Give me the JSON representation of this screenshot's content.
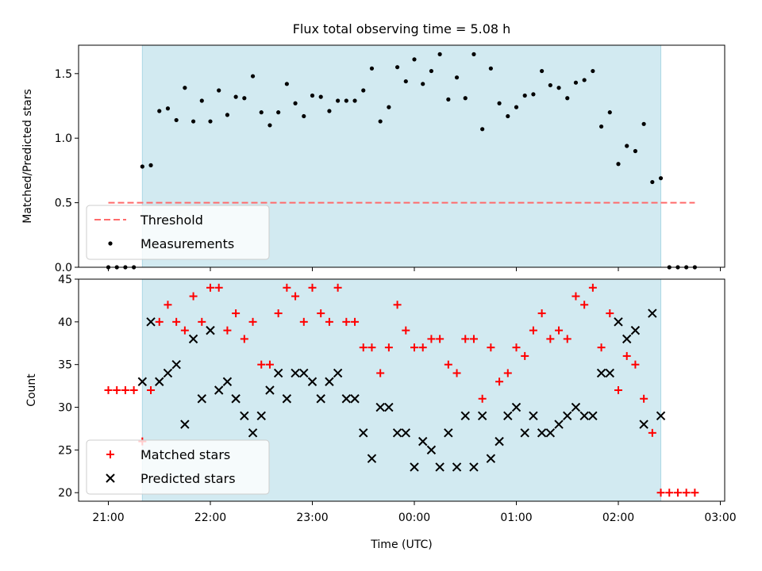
{
  "chart_data": [
    {
      "type": "scatter",
      "title": "Flux total observing time = 5.08 h",
      "ylabel": "Matched/Predicted stars",
      "xlabel": "",
      "ylim": [
        0,
        1.72
      ],
      "yticks": [
        "0.0",
        "0.5",
        "1.0",
        "1.5"
      ],
      "threshold": {
        "name": "Threshold",
        "value": 0.5,
        "color": "#ff6b6b",
        "from": "21:00",
        "to": "02:45"
      },
      "observing_window": {
        "start": "21:20",
        "end": "02:25",
        "color": "#add8e6"
      },
      "legend": {
        "placement": "lower-left",
        "entries": [
          "Threshold",
          "Measurements"
        ]
      },
      "series": [
        {
          "name": "Measurements",
          "color": "#000000",
          "x": [
            "21:00",
            "21:05",
            "21:10",
            "21:15",
            "21:20",
            "21:25",
            "21:30",
            "21:35",
            "21:40",
            "21:45",
            "21:50",
            "21:55",
            "22:00",
            "22:05",
            "22:10",
            "22:15",
            "22:20",
            "22:25",
            "22:30",
            "22:35",
            "22:40",
            "22:45",
            "22:50",
            "22:55",
            "23:00",
            "23:05",
            "23:10",
            "23:15",
            "23:20",
            "23:25",
            "23:30",
            "23:35",
            "23:40",
            "23:45",
            "23:50",
            "23:55",
            "00:00",
            "00:05",
            "00:10",
            "00:15",
            "00:20",
            "00:25",
            "00:30",
            "00:35",
            "00:40",
            "00:45",
            "00:50",
            "00:55",
            "01:00",
            "01:05",
            "01:10",
            "01:15",
            "01:20",
            "01:25",
            "01:30",
            "01:35",
            "01:40",
            "01:45",
            "01:50",
            "01:55",
            "02:00",
            "02:05",
            "02:10",
            "02:15",
            "02:20",
            "02:25",
            "02:30",
            "02:35",
            "02:40",
            "02:45"
          ],
          "values": [
            0.0,
            0.0,
            0.0,
            0.0,
            0.78,
            0.79,
            1.21,
            1.23,
            1.14,
            1.39,
            1.13,
            1.29,
            1.13,
            1.37,
            1.18,
            1.32,
            1.31,
            1.48,
            1.2,
            1.1,
            1.2,
            1.42,
            1.27,
            1.17,
            1.33,
            1.32,
            1.21,
            1.29,
            1.29,
            1.29,
            1.37,
            1.54,
            1.13,
            1.24,
            1.55,
            1.44,
            1.61,
            1.42,
            1.52,
            1.65,
            1.3,
            1.47,
            1.31,
            1.65,
            1.07,
            1.54,
            1.27,
            1.17,
            1.24,
            1.33,
            1.34,
            1.52,
            1.41,
            1.39,
            1.31,
            1.43,
            1.45,
            1.52,
            1.09,
            1.2,
            0.8,
            0.94,
            0.9,
            1.11,
            0.66,
            0.69,
            0.0,
            0.0,
            0.0,
            0.0
          ]
        }
      ]
    },
    {
      "type": "scatter",
      "title": "",
      "ylabel": "Count",
      "xlabel": "Time (UTC)",
      "ylim": [
        19,
        45
      ],
      "yticks": [
        "20",
        "25",
        "30",
        "35",
        "40",
        "45"
      ],
      "xticks": [
        "21:00",
        "22:00",
        "23:00",
        "00:00",
        "01:00",
        "02:00",
        "03:00"
      ],
      "observing_window": {
        "start": "21:20",
        "end": "02:25",
        "color": "#add8e6"
      },
      "legend": {
        "placement": "lower-left",
        "entries": [
          "Matched stars",
          "Predicted stars"
        ]
      },
      "series": [
        {
          "name": "Matched stars",
          "color": "#ff0000",
          "marker": "+",
          "x": [
            "21:00",
            "21:05",
            "21:10",
            "21:15",
            "21:20",
            "21:25",
            "21:30",
            "21:35",
            "21:40",
            "21:45",
            "21:50",
            "21:55",
            "22:00",
            "22:05",
            "22:10",
            "22:15",
            "22:20",
            "22:25",
            "22:30",
            "22:35",
            "22:40",
            "22:45",
            "22:50",
            "22:55",
            "23:00",
            "23:05",
            "23:10",
            "23:15",
            "23:20",
            "23:25",
            "23:30",
            "23:35",
            "23:40",
            "23:45",
            "23:50",
            "23:55",
            "00:00",
            "00:05",
            "00:10",
            "00:15",
            "00:20",
            "00:25",
            "00:30",
            "00:35",
            "00:40",
            "00:45",
            "00:50",
            "00:55",
            "01:00",
            "01:05",
            "01:10",
            "01:15",
            "01:20",
            "01:25",
            "01:30",
            "01:35",
            "01:40",
            "01:45",
            "01:50",
            "01:55",
            "02:00",
            "02:05",
            "02:10",
            "02:15",
            "02:20",
            "02:25",
            "02:30",
            "02:35",
            "02:40",
            "02:45"
          ],
          "values": [
            32,
            32,
            32,
            32,
            26,
            32,
            40,
            42,
            40,
            39,
            43,
            40,
            44,
            44,
            39,
            41,
            38,
            40,
            35,
            35,
            41,
            44,
            43,
            40,
            44,
            41,
            40,
            44,
            40,
            40,
            37,
            37,
            34,
            37,
            42,
            39,
            37,
            37,
            38,
            38,
            35,
            34,
            38,
            38,
            31,
            37,
            33,
            34,
            37,
            36,
            39,
            41,
            38,
            39,
            38,
            43,
            42,
            44,
            37,
            41,
            32,
            36,
            35,
            31,
            27,
            20,
            20,
            20,
            20,
            20
          ]
        },
        {
          "name": "Predicted stars",
          "color": "#000000",
          "marker": "x",
          "x": [
            "21:20",
            "21:25",
            "21:30",
            "21:35",
            "21:40",
            "21:45",
            "21:50",
            "21:55",
            "22:00",
            "22:05",
            "22:10",
            "22:15",
            "22:20",
            "22:25",
            "22:30",
            "22:35",
            "22:40",
            "22:45",
            "22:50",
            "22:55",
            "23:00",
            "23:05",
            "23:10",
            "23:15",
            "23:20",
            "23:25",
            "23:30",
            "23:35",
            "23:40",
            "23:45",
            "23:50",
            "23:55",
            "00:00",
            "00:05",
            "00:10",
            "00:15",
            "00:20",
            "00:25",
            "00:30",
            "00:35",
            "00:40",
            "00:45",
            "00:50",
            "00:55",
            "01:00",
            "01:05",
            "01:10",
            "01:15",
            "01:20",
            "01:25",
            "01:30",
            "01:35",
            "01:40",
            "01:45",
            "01:50",
            "01:55",
            "02:00",
            "02:05",
            "02:10",
            "02:15",
            "02:20",
            "02:25"
          ],
          "values": [
            33,
            40,
            33,
            34,
            35,
            28,
            38,
            31,
            39,
            32,
            33,
            31,
            29,
            27,
            29,
            32,
            34,
            31,
            34,
            34,
            33,
            31,
            33,
            34,
            31,
            31,
            27,
            24,
            30,
            30,
            27,
            27,
            23,
            26,
            25,
            23,
            27,
            23,
            29,
            23,
            29,
            24,
            26,
            29,
            30,
            27,
            29,
            27,
            27,
            28,
            29,
            30,
            29,
            29,
            34,
            34,
            40,
            38,
            39,
            28,
            41,
            29
          ]
        }
      ]
    }
  ]
}
